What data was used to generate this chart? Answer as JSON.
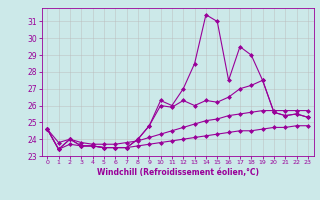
{
  "x": [
    0,
    1,
    2,
    3,
    4,
    5,
    6,
    7,
    8,
    9,
    10,
    11,
    12,
    13,
    14,
    15,
    16,
    17,
    18,
    19,
    20,
    21,
    22,
    23
  ],
  "line1": [
    24.6,
    23.4,
    24.0,
    23.6,
    23.6,
    23.5,
    23.5,
    23.5,
    24.0,
    24.8,
    26.3,
    26.0,
    27.0,
    28.5,
    31.4,
    31.0,
    27.5,
    29.5,
    29.0,
    27.5,
    25.6,
    25.4,
    25.5,
    25.3
  ],
  "line2": [
    24.6,
    23.4,
    24.0,
    23.6,
    23.6,
    23.5,
    23.5,
    23.5,
    24.0,
    24.8,
    26.0,
    25.9,
    26.3,
    26.0,
    26.3,
    26.2,
    26.5,
    27.0,
    27.2,
    27.5,
    25.6,
    25.4,
    25.5,
    25.3
  ],
  "line3": [
    24.6,
    23.8,
    24.0,
    23.8,
    23.7,
    23.7,
    23.7,
    23.8,
    23.9,
    24.1,
    24.3,
    24.5,
    24.7,
    24.9,
    25.1,
    25.2,
    25.4,
    25.5,
    25.6,
    25.7,
    25.7,
    25.7,
    25.7,
    25.7
  ],
  "line4": [
    24.6,
    23.4,
    23.7,
    23.6,
    23.6,
    23.5,
    23.5,
    23.5,
    23.6,
    23.7,
    23.8,
    23.9,
    24.0,
    24.1,
    24.2,
    24.3,
    24.4,
    24.5,
    24.5,
    24.6,
    24.7,
    24.7,
    24.8,
    24.8
  ],
  "color": "#990099",
  "bgcolor": "#cce9e9",
  "grid_color": "#bbbbbb",
  "xlabel": "Windchill (Refroidissement éolien,°C)",
  "xlim": [
    -0.5,
    23.5
  ],
  "ylim": [
    23,
    31.8
  ],
  "yticks": [
    23,
    24,
    25,
    26,
    27,
    28,
    29,
    30,
    31
  ],
  "xticks": [
    0,
    1,
    2,
    3,
    4,
    5,
    6,
    7,
    8,
    9,
    10,
    11,
    12,
    13,
    14,
    15,
    16,
    17,
    18,
    19,
    20,
    21,
    22,
    23
  ],
  "marker": "D",
  "markersize": 2.0,
  "linewidth": 0.8
}
